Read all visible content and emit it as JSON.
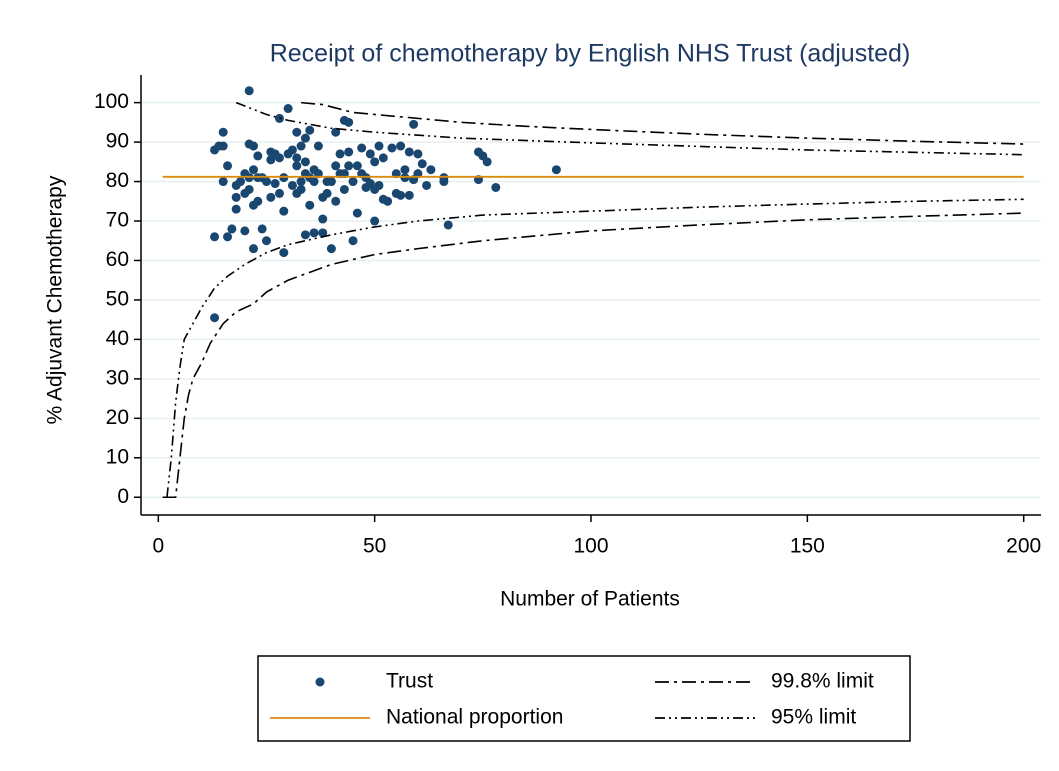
{
  "chart_data": {
    "type": "scatter",
    "title": "Receipt of chemotherapy by English NHS Trust (adjusted)",
    "x_label": "Number of Patients",
    "y_label": "% Adjuvant Chemotherapy",
    "xlim": [
      -4,
      204
    ],
    "ylim": [
      -4.5,
      107
    ],
    "xticks": [
      0,
      50,
      100,
      150,
      200
    ],
    "yticks": [
      0,
      10,
      20,
      30,
      40,
      50,
      60,
      70,
      80,
      90,
      100
    ],
    "grid": true,
    "legend": "bottom",
    "series": [
      {
        "name": "Trust",
        "kind": "points",
        "color": "#1a476f",
        "x": [
          13,
          13,
          13,
          14,
          15,
          15,
          15,
          16,
          16,
          17,
          18,
          18,
          18,
          19,
          20,
          20,
          20,
          21,
          21,
          21,
          21,
          22,
          22,
          22,
          22,
          23,
          23,
          23,
          24,
          24,
          25,
          25,
          26,
          26,
          26,
          27,
          27,
          28,
          28,
          28,
          29,
          29,
          29,
          30,
          30,
          31,
          31,
          32,
          32,
          32,
          32,
          33,
          33,
          33,
          34,
          34,
          34,
          34,
          35,
          35,
          35,
          36,
          36,
          36,
          37,
          37,
          38,
          38,
          38,
          39,
          39,
          40,
          40,
          41,
          41,
          41,
          42,
          42,
          43,
          43,
          43,
          44,
          44,
          44,
          45,
          45,
          46,
          46,
          47,
          47,
          48,
          48,
          49,
          49,
          50,
          50,
          50,
          51,
          51,
          52,
          52,
          53,
          54,
          55,
          55,
          56,
          56,
          57,
          57,
          58,
          58,
          59,
          59,
          60,
          60,
          61,
          62,
          63,
          66,
          66,
          67,
          74,
          74,
          75,
          76,
          78,
          92
        ],
        "values": [
          66,
          88,
          45.5,
          89,
          92.5,
          89,
          80,
          66,
          84,
          68,
          79,
          76,
          73,
          80,
          82,
          77,
          67.5,
          103,
          89.5,
          81,
          78,
          89,
          83,
          74,
          63,
          81,
          75,
          86.5,
          68,
          81,
          65,
          80,
          87.5,
          85.5,
          76,
          87,
          79.5,
          96,
          86,
          77,
          81,
          72.5,
          62,
          98.5,
          87,
          79,
          88,
          92.5,
          84,
          86,
          77,
          89,
          80,
          78,
          91,
          85,
          82,
          66.5,
          74,
          93,
          81,
          83,
          67,
          80,
          89,
          82,
          76,
          70.5,
          67,
          77,
          80,
          63,
          80,
          84,
          92.5,
          75,
          87,
          82,
          95.5,
          82,
          78,
          95,
          87.5,
          84,
          65,
          80,
          72,
          84,
          82,
          88.5,
          81,
          78.5,
          79.5,
          87,
          70,
          85,
          78,
          89,
          79,
          86,
          75.5,
          75,
          88.5,
          77,
          82,
          76.5,
          89,
          81,
          83,
          87.5,
          76.5,
          94.5,
          80.5,
          87,
          82,
          84.5,
          79,
          83,
          81,
          80,
          69,
          87.5,
          80.5,
          86.5,
          85,
          78.5,
          83
        ]
      },
      {
        "name": "National proportion",
        "kind": "line",
        "line_style": "solid",
        "color": "#d98c0f",
        "x": [
          1,
          200
        ],
        "values": [
          81.2,
          81.2
        ]
      },
      {
        "name": "99.8% limit",
        "kind": "line",
        "line_style": "dash-dot",
        "color": "#000000",
        "x": [
          33,
          38,
          45,
          55,
          70,
          85,
          100,
          125,
          150,
          175,
          200
        ],
        "values": [
          100,
          99.5,
          97.5,
          96.5,
          95,
          94,
          93.2,
          92,
          91,
          90.2,
          89.5
        ]
      },
      {
        "name": "95% limit",
        "kind": "line",
        "line_style": "dash-dot-dot",
        "color": "#000000",
        "x": [
          18,
          25,
          30,
          40,
          50,
          70,
          100,
          150,
          200
        ],
        "values": [
          100,
          97,
          95.5,
          93.5,
          92.5,
          91,
          89.8,
          88,
          86.8
        ]
      },
      {
        "name": "99.8% limit lower",
        "legend": false,
        "kind": "line",
        "line_style": "dash-dot",
        "color": "#000000",
        "x": [
          1,
          4,
          5,
          6,
          7,
          8,
          10,
          12,
          15,
          18,
          22,
          25,
          30,
          40,
          50,
          60,
          75,
          100,
          125,
          150,
          175,
          200
        ],
        "values": [
          0,
          0,
          10,
          20,
          26,
          30,
          34,
          39,
          44,
          47,
          49,
          52,
          55,
          59,
          61.5,
          63,
          65,
          67.5,
          69,
          70.3,
          71.2,
          72
        ]
      },
      {
        "name": "95% limit lower",
        "legend": false,
        "kind": "line",
        "line_style": "dash-dot-dot",
        "color": "#000000",
        "x": [
          2,
          3,
          4,
          5,
          6,
          8,
          10,
          13,
          16,
          20,
          25,
          30,
          40,
          50,
          60,
          75,
          100,
          125,
          150,
          175,
          200
        ],
        "values": [
          0,
          10,
          24,
          33,
          40,
          44,
          48,
          53,
          56,
          59,
          62,
          64,
          66.5,
          68.5,
          70,
          71.5,
          72.5,
          73.5,
          74.3,
          75,
          75.5
        ]
      }
    ]
  }
}
